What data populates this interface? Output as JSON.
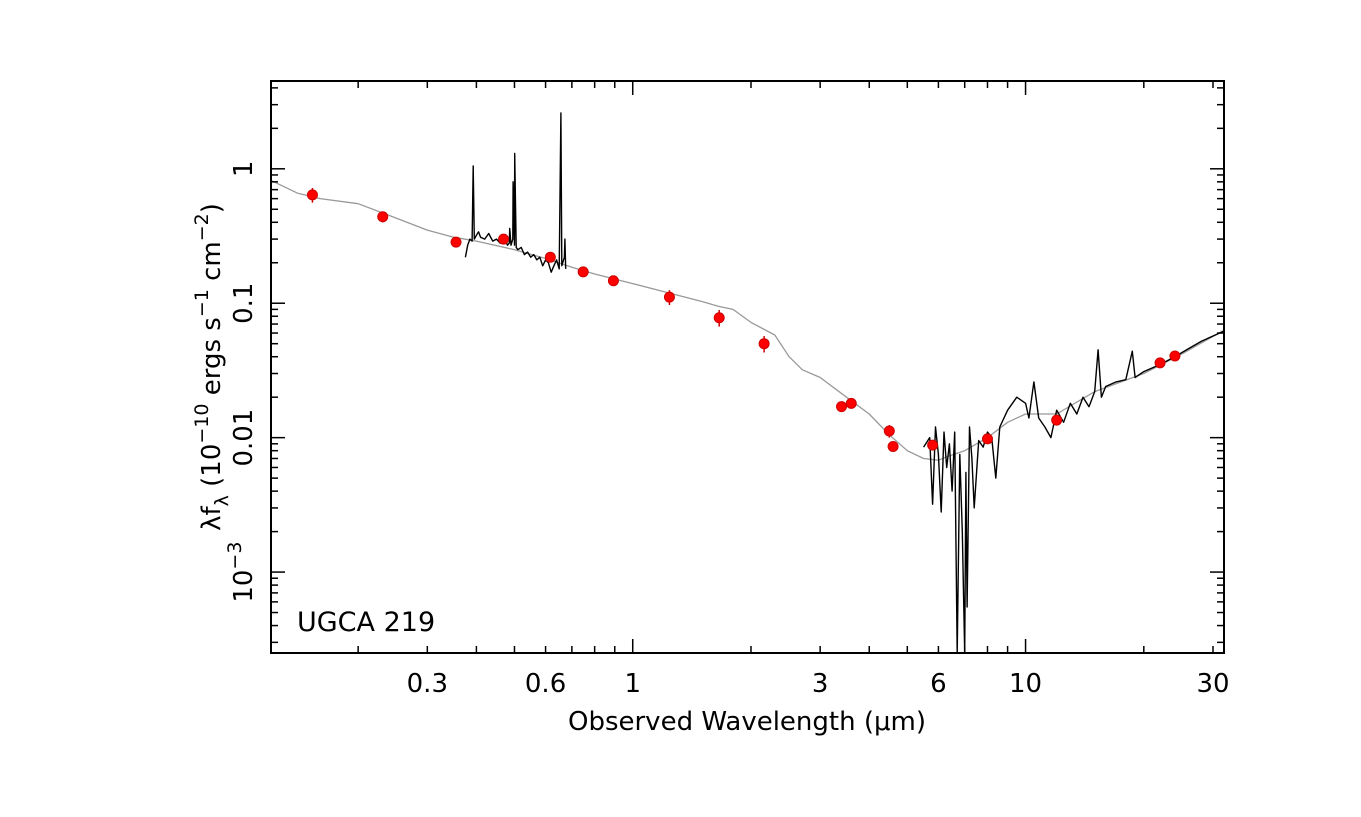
{
  "chart_data": {
    "type": "scatter",
    "title": "",
    "annotation": "UGCA 219",
    "xlabel": "Observed Wavelength (μm)",
    "ylabel": {
      "lead": "λf",
      "sub": "λ",
      "open": " (10",
      "exp1": "−10",
      "mid": " ergs s",
      "exp2": "−1",
      "mid2": " cm",
      "exp3": "−2",
      "close": ")"
    },
    "x_scale": "log",
    "y_scale": "log",
    "xlim": [
      0.12,
      32
    ],
    "ylim": [
      0.00025,
      4.5
    ],
    "grid": false,
    "legend": "none",
    "x_ticks": [
      {
        "value": 0.3,
        "label": "0.3"
      },
      {
        "value": 0.6,
        "label": "0.6"
      },
      {
        "value": 1,
        "label": "1"
      },
      {
        "value": 3,
        "label": "3"
      },
      {
        "value": 6,
        "label": "6"
      },
      {
        "value": 10,
        "label": "10"
      },
      {
        "value": 30,
        "label": "30"
      }
    ],
    "y_ticks": [
      {
        "value": 1,
        "label": "1"
      },
      {
        "value": 0.1,
        "label": "0.1"
      },
      {
        "value": 0.01,
        "label": "0.01"
      },
      {
        "value": 0.001,
        "label": "10",
        "sup": "−3"
      }
    ],
    "colors": {
      "points": "#ff0000",
      "point_edge": "#cc0000",
      "model": "#999999",
      "spectrum": "#000000",
      "axes": "#000000"
    },
    "series": [
      {
        "kind": "photometry",
        "points": [
          {
            "x": 0.153,
            "y": 0.64,
            "yerr": 0.08
          },
          {
            "x": 0.231,
            "y": 0.44,
            "yerr": 0.04
          },
          {
            "x": 0.355,
            "y": 0.285,
            "yerr": 0.02
          },
          {
            "x": 0.469,
            "y": 0.3,
            "yerr": 0.02
          },
          {
            "x": 0.617,
            "y": 0.22,
            "yerr": 0.015
          },
          {
            "x": 0.748,
            "y": 0.171,
            "yerr": 0.01
          },
          {
            "x": 0.893,
            "y": 0.147,
            "yerr": 0.01
          },
          {
            "x": 1.24,
            "y": 0.111,
            "yerr": 0.014
          },
          {
            "x": 1.66,
            "y": 0.078,
            "yerr": 0.011
          },
          {
            "x": 2.16,
            "y": 0.05,
            "yerr": 0.007
          },
          {
            "x": 3.4,
            "y": 0.017,
            "yerr": 0.0015
          },
          {
            "x": 3.6,
            "y": 0.018,
            "yerr": 0.0012
          },
          {
            "x": 4.5,
            "y": 0.0112,
            "yerr": 0.0012
          },
          {
            "x": 4.6,
            "y": 0.0086,
            "yerr": 0.0007
          },
          {
            "x": 5.8,
            "y": 0.0088,
            "yerr": 0.0007
          },
          {
            "x": 8.0,
            "y": 0.0098,
            "yerr": 0.0008
          },
          {
            "x": 12.0,
            "y": 0.0135,
            "yerr": 0.0012
          },
          {
            "x": 22.0,
            "y": 0.036,
            "yerr": 0.0025
          },
          {
            "x": 24.0,
            "y": 0.0405,
            "yerr": 0.003
          }
        ]
      },
      {
        "kind": "model",
        "points": [
          [
            0.12,
            0.82
          ],
          [
            0.14,
            0.66
          ],
          [
            0.16,
            0.6
          ],
          [
            0.2,
            0.55
          ],
          [
            0.25,
            0.43
          ],
          [
            0.3,
            0.35
          ],
          [
            0.35,
            0.31
          ],
          [
            0.4,
            0.29
          ],
          [
            0.5,
            0.25
          ],
          [
            0.6,
            0.215
          ],
          [
            0.7,
            0.185
          ],
          [
            0.8,
            0.165
          ],
          [
            1.0,
            0.14
          ],
          [
            1.2,
            0.122
          ],
          [
            1.5,
            0.103
          ],
          [
            1.65,
            0.095
          ],
          [
            1.8,
            0.09
          ],
          [
            2.0,
            0.072
          ],
          [
            2.3,
            0.058
          ],
          [
            2.5,
            0.04
          ],
          [
            2.7,
            0.032
          ],
          [
            3.0,
            0.028
          ],
          [
            3.5,
            0.02
          ],
          [
            4.0,
            0.015
          ],
          [
            4.5,
            0.0105
          ],
          [
            5.0,
            0.008
          ],
          [
            5.5,
            0.007
          ],
          [
            6.0,
            0.0068
          ],
          [
            6.3,
            0.0072
          ],
          [
            7.0,
            0.008
          ],
          [
            8.0,
            0.01
          ],
          [
            9.0,
            0.013
          ],
          [
            10.0,
            0.015
          ],
          [
            11.0,
            0.015
          ],
          [
            12.0,
            0.015
          ],
          [
            15.0,
            0.022
          ],
          [
            20.0,
            0.03
          ],
          [
            25.0,
            0.042
          ],
          [
            32.0,
            0.063
          ]
        ]
      },
      {
        "kind": "optical-spectrum",
        "points": [
          [
            0.375,
            0.22
          ],
          [
            0.38,
            0.27
          ],
          [
            0.385,
            0.3
          ],
          [
            0.39,
            0.29
          ],
          [
            0.3925,
            1.05
          ],
          [
            0.395,
            0.3
          ],
          [
            0.4,
            0.32
          ],
          [
            0.405,
            0.34
          ],
          [
            0.41,
            0.31
          ],
          [
            0.42,
            0.3
          ],
          [
            0.43,
            0.33
          ],
          [
            0.44,
            0.29
          ],
          [
            0.45,
            0.3
          ],
          [
            0.46,
            0.28
          ],
          [
            0.47,
            0.31
          ],
          [
            0.48,
            0.27
          ],
          [
            0.485,
            0.28
          ],
          [
            0.4861,
            0.36
          ],
          [
            0.49,
            0.27
          ],
          [
            0.495,
            0.3
          ],
          [
            0.4959,
            0.8
          ],
          [
            0.5,
            0.27
          ],
          [
            0.5007,
            1.3
          ],
          [
            0.505,
            0.26
          ],
          [
            0.51,
            0.25
          ],
          [
            0.52,
            0.26
          ],
          [
            0.53,
            0.23
          ],
          [
            0.54,
            0.24
          ],
          [
            0.55,
            0.22
          ],
          [
            0.56,
            0.23
          ],
          [
            0.57,
            0.21
          ],
          [
            0.58,
            0.22
          ],
          [
            0.59,
            0.19
          ],
          [
            0.6,
            0.21
          ],
          [
            0.61,
            0.2
          ],
          [
            0.62,
            0.17
          ],
          [
            0.63,
            0.19
          ],
          [
            0.64,
            0.21
          ],
          [
            0.65,
            0.18
          ],
          [
            0.6563,
            2.6
          ],
          [
            0.66,
            0.19
          ],
          [
            0.67,
            0.22
          ],
          [
            0.672,
            0.3
          ],
          [
            0.675,
            0.18
          ]
        ]
      },
      {
        "kind": "ir-spectrum",
        "points": [
          [
            5.5,
            0.0085
          ],
          [
            5.7,
            0.01
          ],
          [
            5.8,
            0.0032
          ],
          [
            5.9,
            0.012
          ],
          [
            6.0,
            0.0075
          ],
          [
            6.1,
            0.0028
          ],
          [
            6.2,
            0.011
          ],
          [
            6.3,
            0.006
          ],
          [
            6.4,
            0.009
          ],
          [
            6.5,
            0.004
          ],
          [
            6.6,
            0.011
          ],
          [
            6.7,
            0.00025
          ],
          [
            6.8,
            0.0075
          ],
          [
            6.9,
            0.002
          ],
          [
            7.0,
            0.00025
          ],
          [
            7.05,
            0.0055
          ],
          [
            7.1,
            0.00055
          ],
          [
            7.2,
            0.012
          ],
          [
            7.3,
            0.007
          ],
          [
            7.4,
            0.003
          ],
          [
            7.6,
            0.0095
          ],
          [
            7.8,
            0.0085
          ],
          [
            8.0,
            0.011
          ],
          [
            8.2,
            0.01
          ],
          [
            8.4,
            0.005
          ],
          [
            8.6,
            0.012
          ],
          [
            9.0,
            0.016
          ],
          [
            9.5,
            0.02
          ],
          [
            10.0,
            0.018
          ],
          [
            10.2,
            0.014
          ],
          [
            10.5,
            0.026
          ],
          [
            10.8,
            0.014
          ],
          [
            11.2,
            0.012
          ],
          [
            11.6,
            0.01
          ],
          [
            12.0,
            0.016
          ],
          [
            12.5,
            0.013
          ],
          [
            13.0,
            0.018
          ],
          [
            13.5,
            0.015
          ],
          [
            14.0,
            0.02
          ],
          [
            14.5,
            0.017
          ],
          [
            15.0,
            0.022
          ],
          [
            15.3,
            0.045
          ],
          [
            15.6,
            0.02
          ],
          [
            16.0,
            0.024
          ],
          [
            17.0,
            0.026
          ],
          [
            18.0,
            0.027
          ],
          [
            18.7,
            0.044
          ],
          [
            19.0,
            0.028
          ],
          [
            20.0,
            0.031
          ],
          [
            22.0,
            0.035
          ],
          [
            24.0,
            0.04
          ],
          [
            26.0,
            0.046
          ],
          [
            28.0,
            0.052
          ],
          [
            30.0,
            0.057
          ],
          [
            32.0,
            0.062
          ]
        ]
      }
    ]
  }
}
